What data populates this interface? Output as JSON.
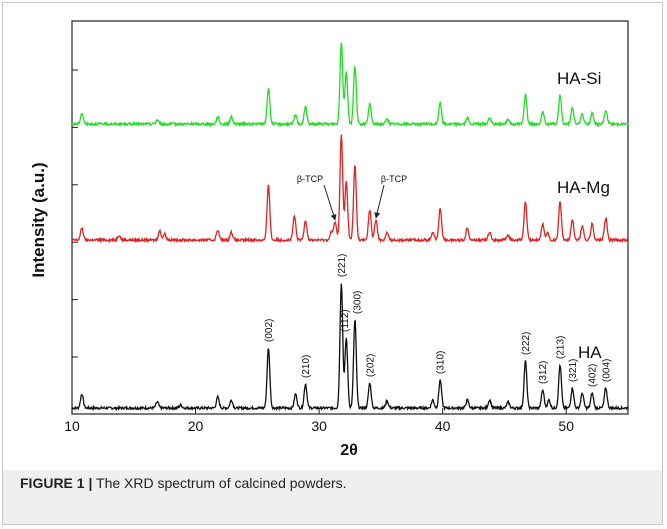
{
  "caption": {
    "label": "FIGURE 1 |",
    "text": " The XRD spectrum of calcined powders."
  },
  "chart_data": {
    "type": "line",
    "xlabel": "2θ",
    "ylabel": "Intensity (a.u.)",
    "xlim": [
      10,
      55
    ],
    "xticks": [
      10,
      20,
      30,
      40,
      50
    ],
    "grid": false,
    "series": [
      {
        "name": "HA",
        "color": "#111111",
        "peaks": [
          [
            10.8,
            14
          ],
          [
            16.9,
            6
          ],
          [
            18.8,
            3
          ],
          [
            21.8,
            11
          ],
          [
            22.9,
            8
          ],
          [
            25.9,
            60
          ],
          [
            28.1,
            14
          ],
          [
            28.9,
            24
          ],
          [
            31.8,
            125
          ],
          [
            32.2,
            70
          ],
          [
            32.9,
            88
          ],
          [
            34.1,
            25
          ],
          [
            35.5,
            7
          ],
          [
            39.2,
            8
          ],
          [
            39.8,
            28
          ],
          [
            42.0,
            8
          ],
          [
            43.8,
            8
          ],
          [
            45.3,
            6
          ],
          [
            46.7,
            47
          ],
          [
            48.1,
            18
          ],
          [
            48.6,
            8
          ],
          [
            49.5,
            43
          ],
          [
            50.5,
            20
          ],
          [
            51.3,
            15
          ],
          [
            52.1,
            15
          ],
          [
            53.2,
            20
          ]
        ]
      },
      {
        "name": "HA-Mg",
        "color": "#e02222",
        "peaks": [
          [
            10.8,
            12
          ],
          [
            13.8,
            5
          ],
          [
            17.1,
            9
          ],
          [
            17.5,
            6
          ],
          [
            21.8,
            10
          ],
          [
            22.9,
            8
          ],
          [
            25.9,
            55
          ],
          [
            28.0,
            24
          ],
          [
            28.9,
            20
          ],
          [
            31.0,
            8
          ],
          [
            31.3,
            18
          ],
          [
            31.8,
            105
          ],
          [
            32.2,
            58
          ],
          [
            32.9,
            75
          ],
          [
            34.1,
            30
          ],
          [
            34.6,
            20
          ],
          [
            35.5,
            7
          ],
          [
            39.2,
            8
          ],
          [
            39.8,
            32
          ],
          [
            42.0,
            12
          ],
          [
            43.8,
            8
          ],
          [
            45.3,
            5
          ],
          [
            46.7,
            38
          ],
          [
            48.1,
            16
          ],
          [
            48.5,
            7
          ],
          [
            49.5,
            38
          ],
          [
            50.5,
            20
          ],
          [
            51.3,
            14
          ],
          [
            52.1,
            16
          ],
          [
            53.2,
            22
          ]
        ]
      },
      {
        "name": "HA-Si",
        "color": "#22dd22",
        "peaks": [
          [
            10.8,
            11
          ],
          [
            16.9,
            4
          ],
          [
            21.8,
            7
          ],
          [
            22.9,
            7
          ],
          [
            25.9,
            36
          ],
          [
            28.1,
            9
          ],
          [
            28.9,
            17
          ],
          [
            31.8,
            82
          ],
          [
            32.2,
            52
          ],
          [
            32.9,
            58
          ],
          [
            34.1,
            20
          ],
          [
            35.5,
            5
          ],
          [
            39.8,
            22
          ],
          [
            42.0,
            6
          ],
          [
            43.8,
            6
          ],
          [
            45.3,
            5
          ],
          [
            46.7,
            30
          ],
          [
            48.1,
            12
          ],
          [
            49.5,
            29
          ],
          [
            50.5,
            16
          ],
          [
            51.3,
            10
          ],
          [
            52.1,
            11
          ],
          [
            53.2,
            14
          ]
        ]
      }
    ],
    "peak_labels": [
      {
        "x": 25.9,
        "text": "(002)"
      },
      {
        "x": 28.9,
        "text": "(210)"
      },
      {
        "x": 31.8,
        "text": "(221)"
      },
      {
        "x": 32.2,
        "text": "(112)"
      },
      {
        "x": 32.9,
        "text": "(300)"
      },
      {
        "x": 34.1,
        "text": "(202)"
      },
      {
        "x": 39.8,
        "text": "(310)"
      },
      {
        "x": 46.7,
        "text": "(222)"
      },
      {
        "x": 48.1,
        "text": "(312)"
      },
      {
        "x": 49.5,
        "text": "(213)"
      },
      {
        "x": 50.5,
        "text": "(321)"
      },
      {
        "x": 52.1,
        "text": "(402)"
      },
      {
        "x": 53.2,
        "text": "(004)"
      }
    ],
    "annotations": [
      {
        "text": "β-TCP",
        "x": 31.3
      },
      {
        "text": "β-TCP",
        "x": 34.6
      }
    ]
  }
}
